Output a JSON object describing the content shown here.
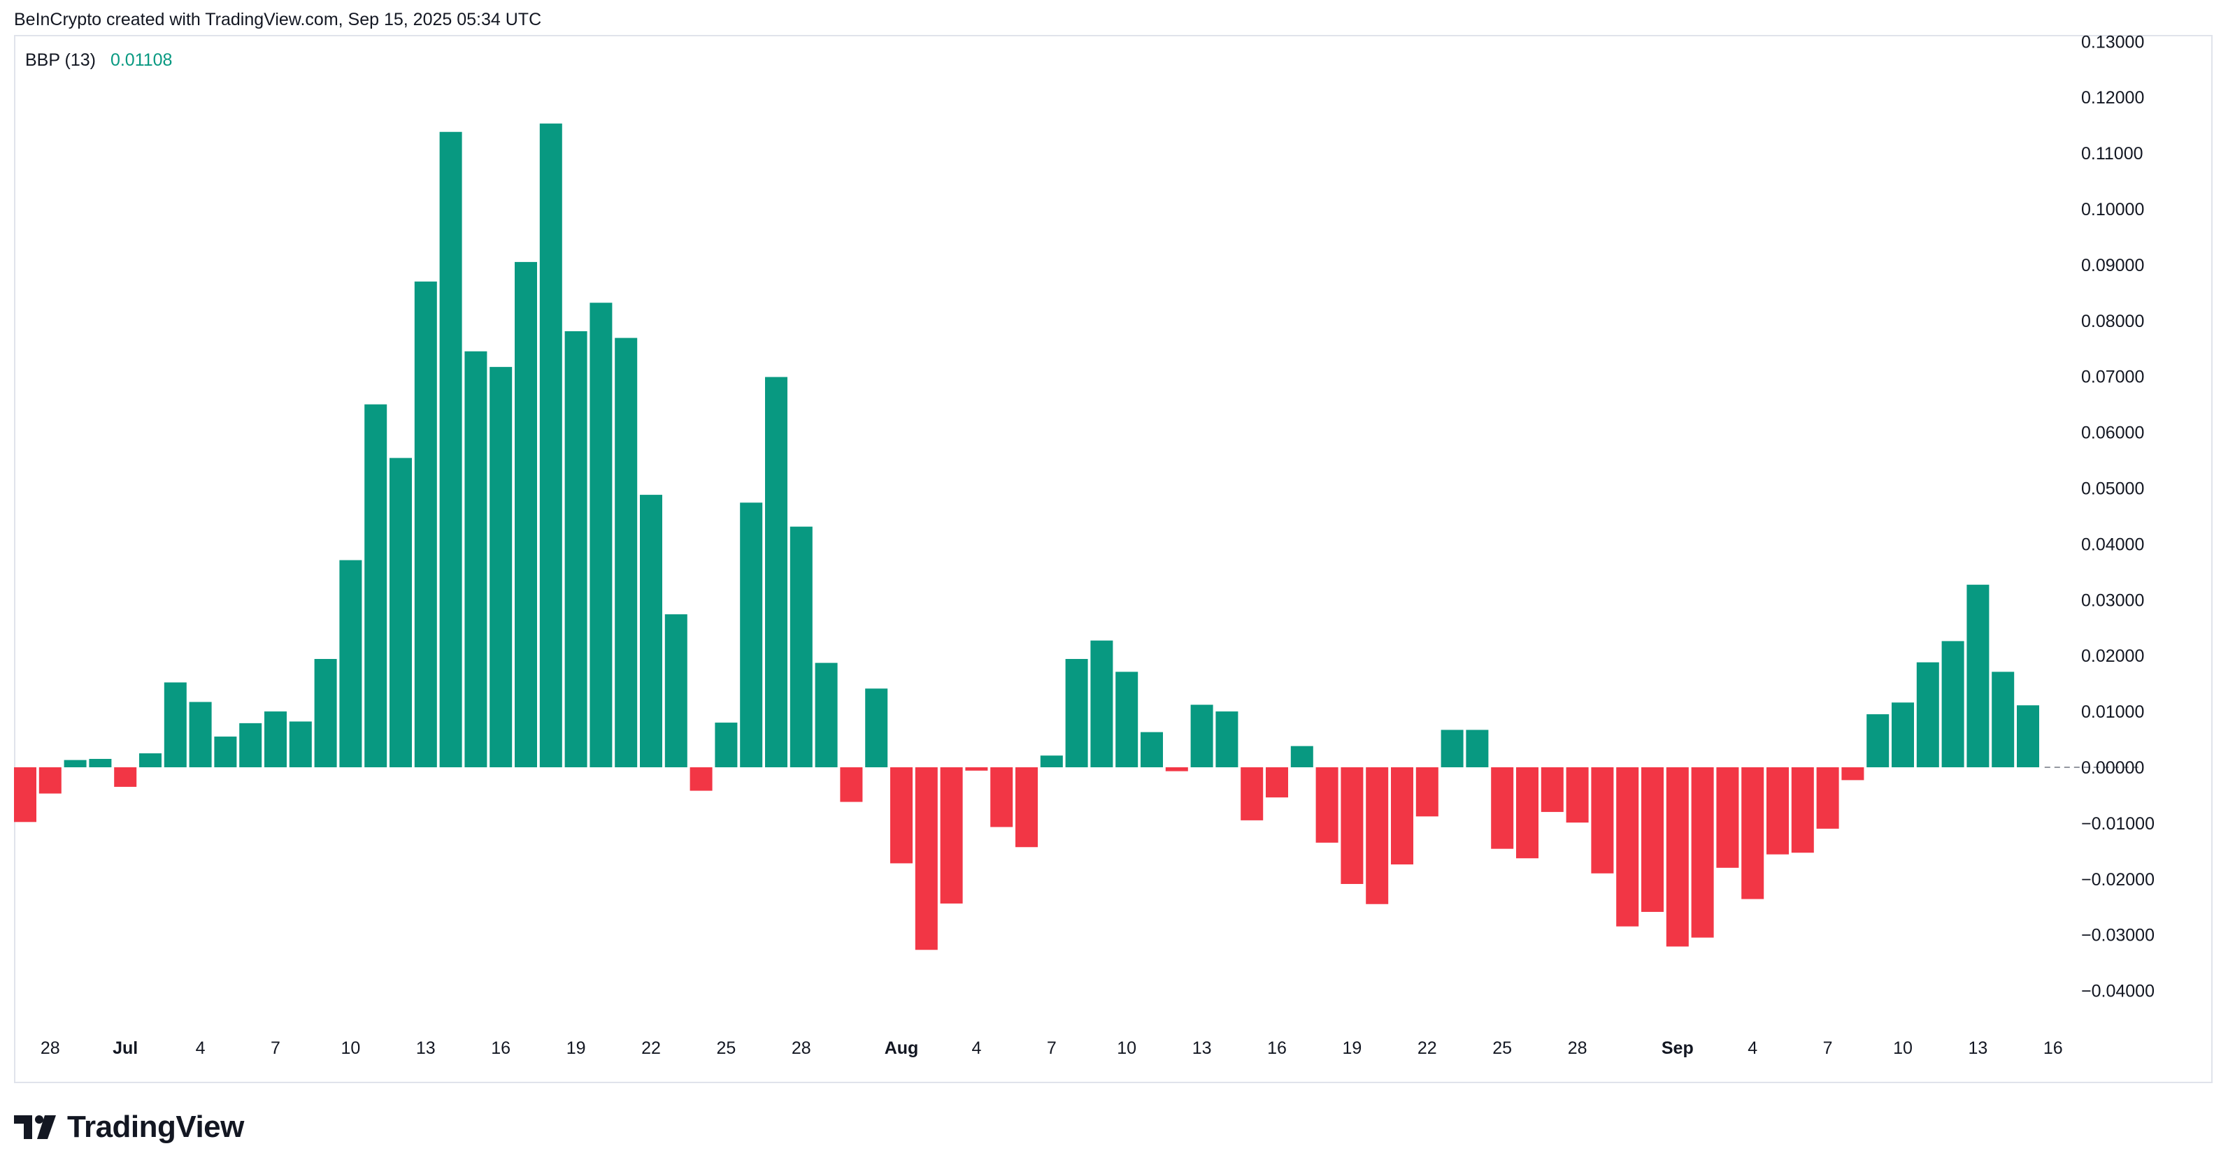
{
  "header": {
    "attribution": "BeInCrypto created with TradingView.com, Sep 15, 2025 05:34 UTC"
  },
  "legend": {
    "name": "BBP (13)",
    "value": "0.01108",
    "value_color": "#089981"
  },
  "footer": {
    "brand": "TradingView"
  },
  "colors": {
    "positive": "#089981",
    "negative": "#f23645",
    "zero_line": "#9598a1"
  },
  "chart_data": {
    "type": "bar",
    "title": "BBP (13)",
    "xlabel": "",
    "ylabel": "",
    "ylim": [
      -0.045,
      0.13
    ],
    "y_ticks": [
      -0.04,
      -0.03,
      -0.02,
      -0.01,
      0.0,
      0.01,
      0.02,
      0.03,
      0.04,
      0.05,
      0.06,
      0.07,
      0.08,
      0.09,
      0.1,
      0.11,
      0.12,
      0.13
    ],
    "y_tick_labels": [
      "−0.04000",
      "−0.03000",
      "−0.02000",
      "−0.01000",
      "0.00000",
      "0.01000",
      "0.02000",
      "0.03000",
      "0.04000",
      "0.05000",
      "0.06000",
      "0.07000",
      "0.08000",
      "0.09000",
      "0.10000",
      "0.11000",
      "0.12000",
      "0.13000"
    ],
    "x_ticks": [
      {
        "index": 1,
        "label": "28",
        "bold": false
      },
      {
        "index": 4,
        "label": "Jul",
        "bold": true
      },
      {
        "index": 7,
        "label": "4",
        "bold": false
      },
      {
        "index": 10,
        "label": "7",
        "bold": false
      },
      {
        "index": 13,
        "label": "10",
        "bold": false
      },
      {
        "index": 16,
        "label": "13",
        "bold": false
      },
      {
        "index": 19,
        "label": "16",
        "bold": false
      },
      {
        "index": 22,
        "label": "19",
        "bold": false
      },
      {
        "index": 25,
        "label": "22",
        "bold": false
      },
      {
        "index": 28,
        "label": "25",
        "bold": false
      },
      {
        "index": 31,
        "label": "28",
        "bold": false
      },
      {
        "index": 35,
        "label": "Aug",
        "bold": true
      },
      {
        "index": 38,
        "label": "4",
        "bold": false
      },
      {
        "index": 41,
        "label": "7",
        "bold": false
      },
      {
        "index": 44,
        "label": "10",
        "bold": false
      },
      {
        "index": 47,
        "label": "13",
        "bold": false
      },
      {
        "index": 50,
        "label": "16",
        "bold": false
      },
      {
        "index": 53,
        "label": "19",
        "bold": false
      },
      {
        "index": 56,
        "label": "22",
        "bold": false
      },
      {
        "index": 59,
        "label": "25",
        "bold": false
      },
      {
        "index": 62,
        "label": "28",
        "bold": false
      },
      {
        "index": 66,
        "label": "Sep",
        "bold": true
      },
      {
        "index": 69,
        "label": "4",
        "bold": false
      },
      {
        "index": 72,
        "label": "7",
        "bold": false
      },
      {
        "index": 75,
        "label": "10",
        "bold": false
      },
      {
        "index": 78,
        "label": "13",
        "bold": false
      },
      {
        "index": 81,
        "label": "16",
        "bold": false
      }
    ],
    "values": [
      -0.0098,
      -0.0047,
      0.0013,
      0.0015,
      -0.0035,
      0.0025,
      0.0152,
      0.0117,
      0.0055,
      0.0079,
      0.01,
      0.0082,
      0.0194,
      0.0371,
      0.065,
      0.0554,
      0.087,
      0.1138,
      0.0745,
      0.0717,
      0.0905,
      0.1153,
      0.0781,
      0.0832,
      0.0769,
      0.0488,
      0.0274,
      -0.0042,
      0.008,
      0.0474,
      0.0699,
      0.0431,
      0.0187,
      -0.0062,
      0.0141,
      -0.0172,
      -0.0327,
      -0.0244,
      -0.0006,
      -0.0107,
      -0.0143,
      0.0021,
      0.0194,
      0.0227,
      0.0171,
      0.0063,
      -0.0007,
      0.0112,
      0.01,
      -0.0095,
      -0.0054,
      0.0038,
      -0.0135,
      -0.0209,
      -0.0245,
      -0.0174,
      -0.0088,
      0.0067,
      0.0067,
      -0.0146,
      -0.0163,
      -0.008,
      -0.0099,
      -0.019,
      -0.0285,
      -0.0259,
      -0.0321,
      -0.0305,
      -0.018,
      -0.0236,
      -0.0156,
      -0.0153,
      -0.011,
      -0.0023,
      0.0095,
      0.0116,
      0.0188,
      0.0226,
      0.0327,
      0.0171,
      0.0111
    ]
  }
}
